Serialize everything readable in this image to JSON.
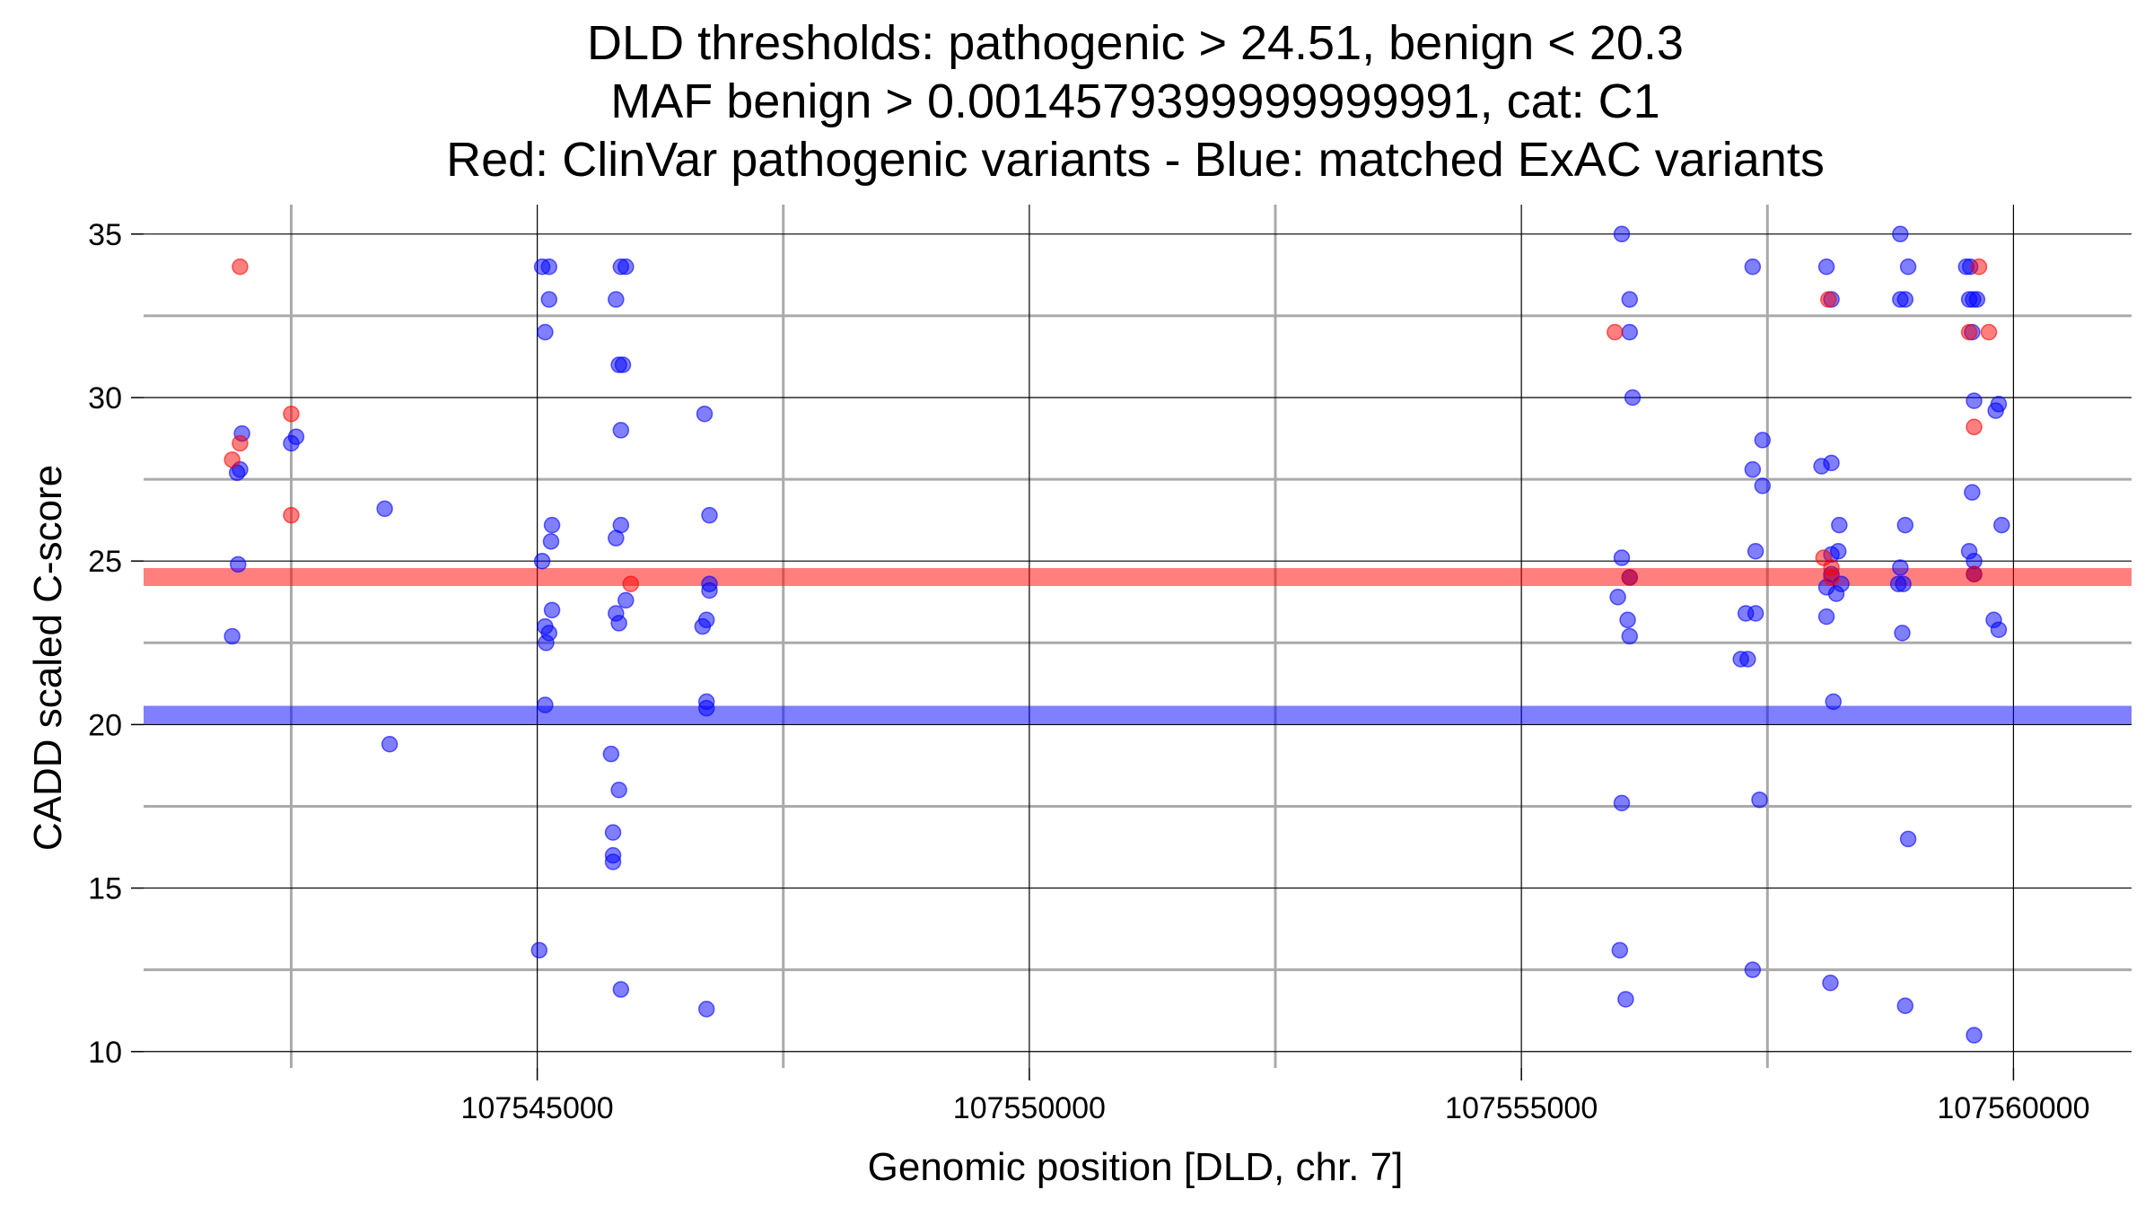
{
  "chart_data": {
    "type": "scatter",
    "title": [
      "DLD thresholds: pathogenic > 24.51, benign < 20.3",
      "MAF benign > 0.0014579399999999991, cat: C1",
      "Red: ClinVar pathogenic variants - Blue: matched ExAC variants"
    ],
    "xlabel": "Genomic position [DLD, chr. 7]",
    "ylabel": "CADD scaled C-score",
    "xlim": [
      107541000,
      107561200
    ],
    "ylim": [
      9.5,
      35.9
    ],
    "x_major_ticks": [
      107545000,
      107550000,
      107555000,
      107560000
    ],
    "x_tick_labels": [
      "107545000",
      "107550000",
      "107555000",
      "107560000"
    ],
    "x_minor_gridlines": [
      107542500,
      107547500,
      107552500,
      107557500
    ],
    "y_major_ticks": [
      10,
      15,
      20,
      25,
      30,
      35
    ],
    "y_tick_labels": [
      "10",
      "15",
      "20",
      "25",
      "30",
      "35"
    ],
    "y_minor_gridlines": [
      12.5,
      17.5,
      22.5,
      27.5,
      32.5
    ],
    "grid": true,
    "thresholds": [
      {
        "name": "pathogenic",
        "value": 24.51,
        "color": "#ff0000"
      },
      {
        "name": "benign",
        "value": 20.3,
        "color": "#0000ff"
      }
    ],
    "series": [
      {
        "name": "ClinVar pathogenic variants",
        "color": "#ff0000",
        "points": [
          [
            107541980,
            34.0
          ],
          [
            107541980,
            28.6
          ],
          [
            107541900,
            28.1
          ],
          [
            107542500,
            29.5
          ],
          [
            107542500,
            26.4
          ],
          [
            107545950,
            24.3
          ],
          [
            107555950,
            32.0
          ],
          [
            107556100,
            24.5
          ],
          [
            107558070,
            25.1
          ],
          [
            107558120,
            33.0
          ],
          [
            107558150,
            24.8
          ],
          [
            107558150,
            24.5
          ],
          [
            107559550,
            32.0
          ],
          [
            107559600,
            29.1
          ],
          [
            107559600,
            24.6
          ],
          [
            107559650,
            34.0
          ],
          [
            107559750,
            32.0
          ]
        ]
      },
      {
        "name": "matched ExAC variants",
        "color": "#0000ff",
        "points": [
          [
            107541950,
            27.7
          ],
          [
            107541980,
            27.8
          ],
          [
            107542000,
            28.9
          ],
          [
            107541960,
            24.9
          ],
          [
            107541900,
            22.7
          ],
          [
            107542500,
            28.6
          ],
          [
            107542550,
            28.8
          ],
          [
            107543450,
            26.6
          ],
          [
            107543500,
            19.4
          ],
          [
            107545050,
            34.0
          ],
          [
            107545120,
            34.0
          ],
          [
            107545080,
            32.0
          ],
          [
            107545120,
            33.0
          ],
          [
            107545150,
            26.1
          ],
          [
            107545140,
            25.6
          ],
          [
            107545050,
            25.0
          ],
          [
            107545150,
            23.5
          ],
          [
            107545080,
            23.0
          ],
          [
            107545120,
            22.8
          ],
          [
            107545090,
            22.5
          ],
          [
            107545080,
            20.6
          ],
          [
            107545020,
            13.1
          ],
          [
            107545850,
            34.0
          ],
          [
            107545900,
            34.0
          ],
          [
            107545800,
            33.0
          ],
          [
            107545830,
            31.0
          ],
          [
            107545870,
            31.0
          ],
          [
            107545850,
            29.0
          ],
          [
            107545850,
            26.1
          ],
          [
            107545800,
            25.7
          ],
          [
            107545900,
            23.8
          ],
          [
            107545800,
            23.4
          ],
          [
            107545830,
            23.1
          ],
          [
            107545750,
            19.1
          ],
          [
            107545830,
            18.0
          ],
          [
            107545770,
            16.7
          ],
          [
            107545770,
            16.0
          ],
          [
            107545770,
            15.8
          ],
          [
            107545850,
            11.9
          ],
          [
            107546700,
            29.5
          ],
          [
            107546750,
            26.4
          ],
          [
            107546750,
            24.3
          ],
          [
            107546750,
            24.1
          ],
          [
            107546720,
            23.2
          ],
          [
            107546680,
            23.0
          ],
          [
            107546720,
            20.7
          ],
          [
            107546720,
            20.5
          ],
          [
            107546720,
            11.3
          ],
          [
            107556020,
            35.0
          ],
          [
            107556100,
            33.0
          ],
          [
            107556100,
            32.0
          ],
          [
            107556130,
            30.0
          ],
          [
            107556020,
            25.1
          ],
          [
            107556100,
            24.5
          ],
          [
            107555980,
            23.9
          ],
          [
            107556080,
            23.2
          ],
          [
            107556100,
            22.7
          ],
          [
            107556020,
            17.6
          ],
          [
            107556000,
            13.1
          ],
          [
            107556060,
            11.6
          ],
          [
            107557350,
            34.0
          ],
          [
            107557450,
            28.7
          ],
          [
            107557350,
            27.8
          ],
          [
            107557450,
            27.3
          ],
          [
            107557380,
            25.3
          ],
          [
            107557280,
            23.4
          ],
          [
            107557380,
            23.4
          ],
          [
            107557230,
            22.0
          ],
          [
            107557300,
            22.0
          ],
          [
            107557420,
            17.7
          ],
          [
            107557350,
            12.5
          ],
          [
            107558100,
            34.0
          ],
          [
            107558150,
            33.0
          ],
          [
            107558050,
            27.9
          ],
          [
            107558150,
            28.0
          ],
          [
            107558230,
            26.1
          ],
          [
            107558220,
            25.3
          ],
          [
            107558150,
            25.2
          ],
          [
            107558150,
            24.6
          ],
          [
            107558100,
            24.2
          ],
          [
            107558200,
            24.0
          ],
          [
            107558250,
            24.3
          ],
          [
            107558100,
            23.3
          ],
          [
            107558170,
            20.7
          ],
          [
            107558140,
            12.1
          ],
          [
            107558850,
            35.0
          ],
          [
            107558930,
            34.0
          ],
          [
            107558850,
            33.0
          ],
          [
            107558900,
            33.0
          ],
          [
            107558900,
            26.1
          ],
          [
            107558850,
            24.8
          ],
          [
            107558830,
            24.3
          ],
          [
            107558880,
            24.3
          ],
          [
            107558870,
            22.8
          ],
          [
            107558930,
            16.5
          ],
          [
            107558900,
            11.4
          ],
          [
            107559520,
            34.0
          ],
          [
            107559560,
            34.0
          ],
          [
            107559550,
            33.0
          ],
          [
            107559590,
            33.0
          ],
          [
            107559630,
            33.0
          ],
          [
            107559580,
            32.0
          ],
          [
            107559600,
            29.9
          ],
          [
            107559580,
            27.1
          ],
          [
            107559550,
            25.3
          ],
          [
            107559600,
            25.0
          ],
          [
            107559600,
            24.6
          ],
          [
            107559600,
            10.5
          ],
          [
            107559850,
            29.8
          ],
          [
            107559820,
            29.6
          ],
          [
            107559880,
            26.1
          ],
          [
            107559800,
            23.2
          ],
          [
            107559850,
            22.9
          ]
        ]
      }
    ]
  }
}
